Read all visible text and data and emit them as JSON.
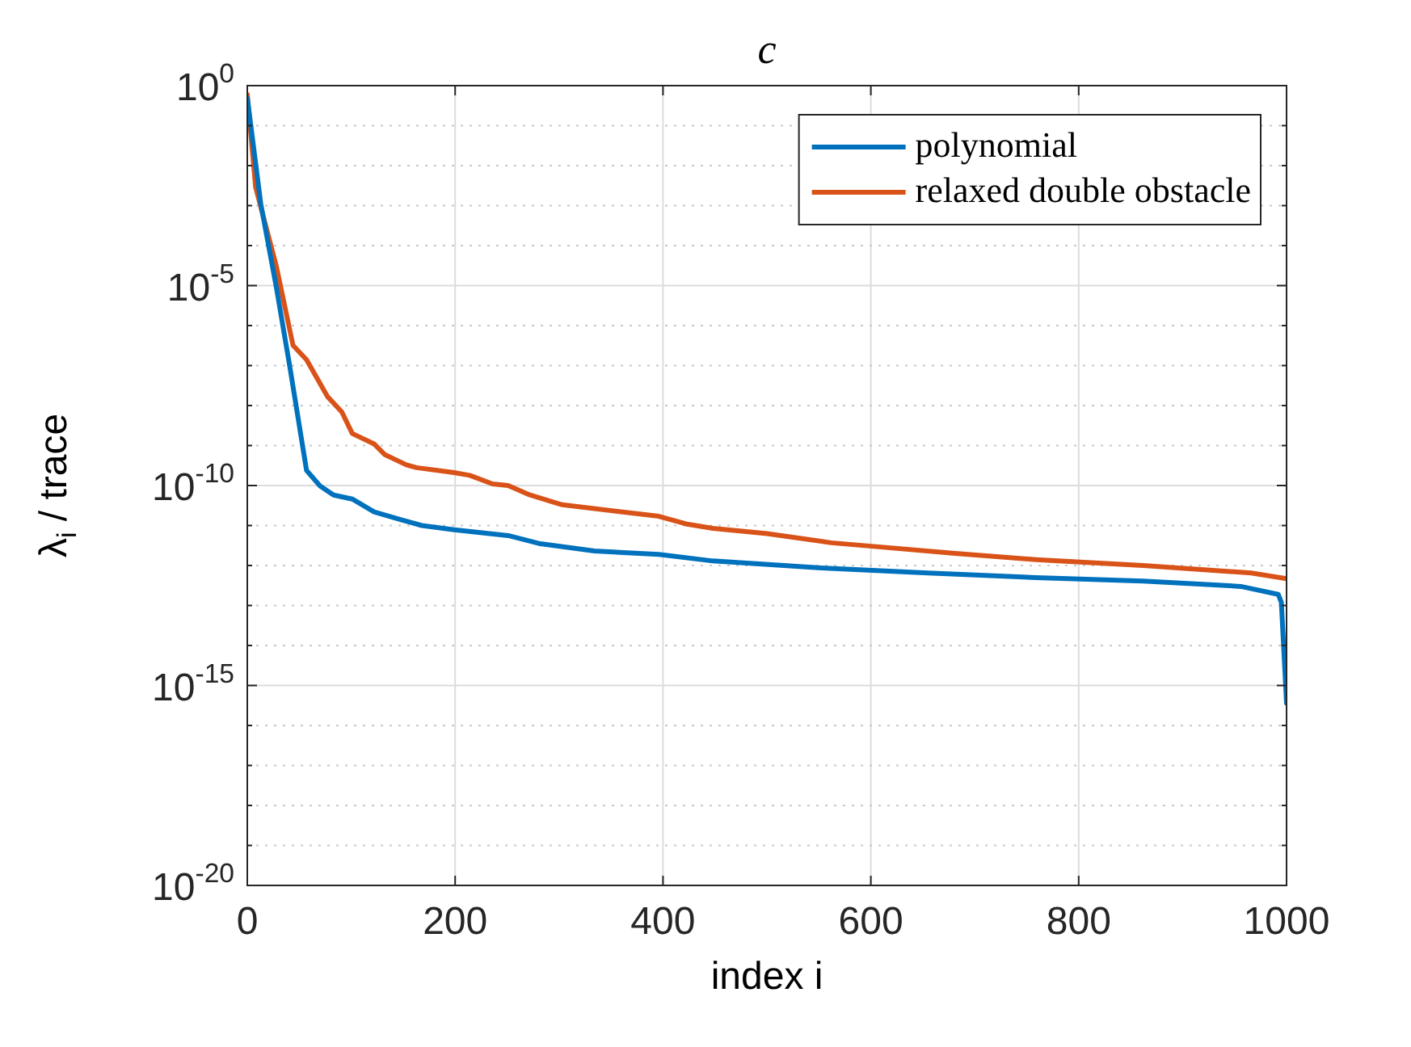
{
  "chart_data": {
    "type": "line",
    "title": "c",
    "xlabel": "index i",
    "ylabel": "λ$_{i}$ / trace",
    "xlim": [
      0,
      1000
    ],
    "xticks": [
      0,
      200,
      400,
      600,
      800,
      1000
    ],
    "ylim": [
      1e-20,
      1
    ],
    "log": true,
    "grid": true,
    "legend": "top right",
    "line_style": "solid",
    "marker": "none",
    "yticks": [
      {
        "value": 1,
        "label": "10$^{0}$"
      },
      {
        "value": 0.1,
        "label": null
      },
      {
        "value": 0.01,
        "label": null
      },
      {
        "value": 0.001,
        "label": null
      },
      {
        "value": 0.0001,
        "label": null
      },
      {
        "value": 1e-05,
        "label": "10$^{-5}$"
      },
      {
        "value": 1e-06,
        "label": null
      },
      {
        "value": 1e-07,
        "label": null
      },
      {
        "value": 1e-08,
        "label": null
      },
      {
        "value": 1e-09,
        "label": null
      },
      {
        "value": 1e-10,
        "label": "10$^{-10}$"
      },
      {
        "value": 1e-11,
        "label": null
      },
      {
        "value": 1e-12,
        "label": null
      },
      {
        "value": 1e-13,
        "label": null
      },
      {
        "value": 1e-14,
        "label": null
      },
      {
        "value": 1e-15,
        "label": "10$^{-15}$"
      },
      {
        "value": 1e-16,
        "label": null
      },
      {
        "value": 1e-17,
        "label": null
      },
      {
        "value": 1e-18,
        "label": null
      },
      {
        "value": 1e-19,
        "label": null
      },
      {
        "value": 1e-20,
        "label": "10$^{-20}$"
      }
    ],
    "series": [
      {
        "name": "polynomial",
        "color": "#0072bd",
        "x": [
          0,
          13,
          28,
          41,
          57,
          70,
          83,
          101,
          122,
          148,
          168,
          199,
          251,
          282,
          334,
          396,
          448,
          552,
          655,
          759,
          862,
          956,
          992,
          995,
          1000
        ],
        "values": [
          0.5,
          0.0011,
          8.9e-06,
          9.1e-08,
          2.4e-10,
          9.8e-11,
          5.8e-11,
          4.6e-11,
          2.2e-11,
          1.4e-11,
          1e-11,
          7.8e-12,
          5.6e-12,
          3.5e-12,
          2.3e-12,
          1.9e-12,
          1.3e-12,
          8.7e-13,
          6.5e-13,
          5e-13,
          4.1e-13,
          3e-13,
          1.9e-13,
          1.2e-13,
          3.6e-16
        ]
      },
      {
        "name": "relaxed double obstacle",
        "color": "#d95319",
        "x": [
          0,
          8,
          28,
          44,
          57,
          77,
          91,
          101,
          122,
          132,
          153,
          163,
          199,
          214,
          236,
          251,
          272,
          303,
          396,
          422,
          448,
          500,
          562,
          603,
          681,
          759,
          862,
          966,
          1000
        ],
        "values": [
          0.6,
          0.0029,
          3e-05,
          3.2e-07,
          1.4e-07,
          1.7e-08,
          6.9e-09,
          2e-09,
          1.1e-09,
          6e-10,
          3.3e-10,
          2.8e-10,
          2.1e-10,
          1.8e-10,
          1.1e-10,
          1e-10,
          5.8e-11,
          3.3e-11,
          1.7e-11,
          1.1e-11,
          8.5e-12,
          6.3e-12,
          3.7e-12,
          3e-12,
          2e-12,
          1.4e-12,
          1e-12,
          6.5e-13,
          4.7e-13
        ]
      }
    ]
  }
}
